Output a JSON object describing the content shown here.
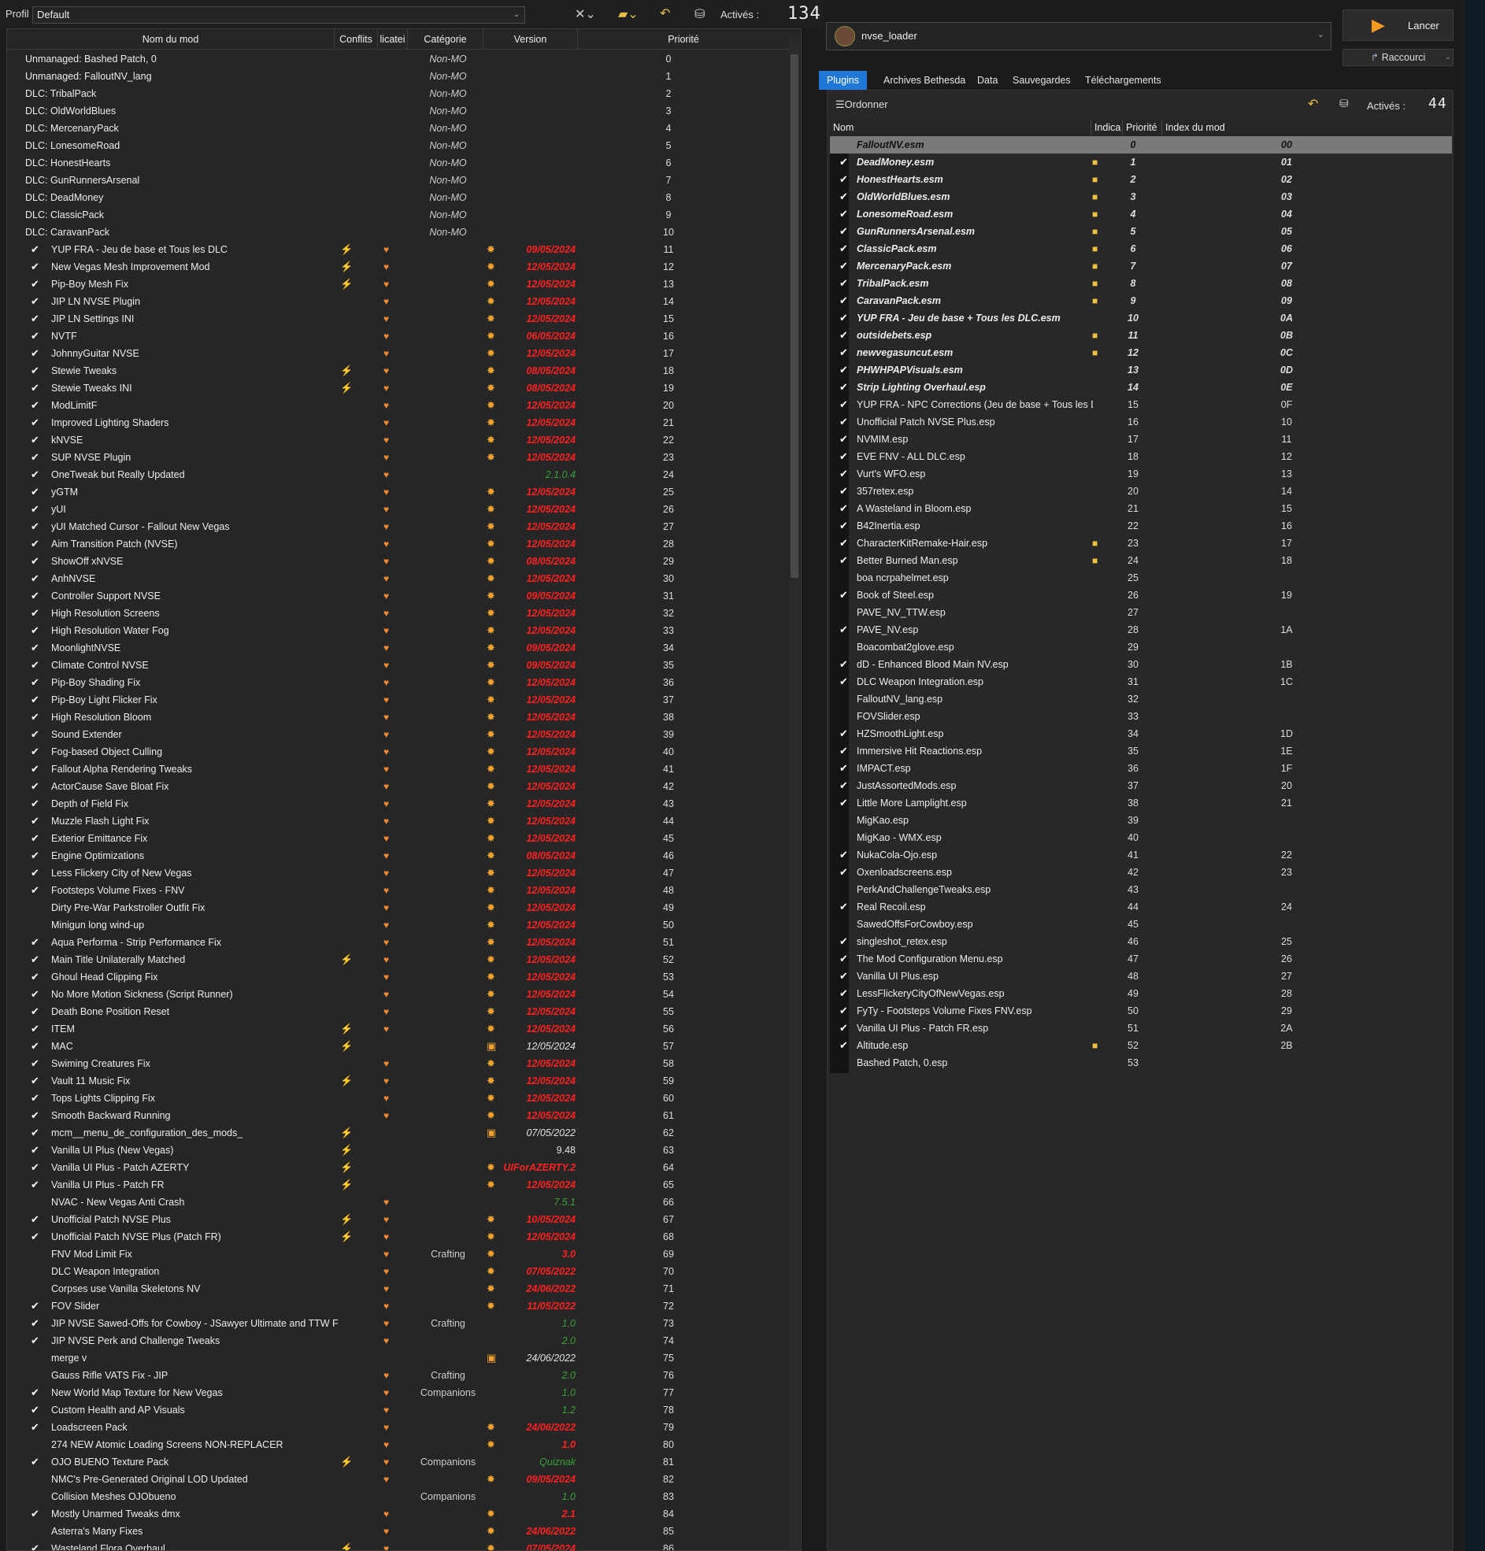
{
  "toolbar": {
    "profile_label": "Profil",
    "profile_value": "Default",
    "active_label": "Activés :",
    "active_count": "134"
  },
  "left_headers": [
    "Nom du mod",
    "Conflits",
    "licatei",
    "Catégorie",
    "Version",
    "Priorité"
  ],
  "mods": [
    [
      "",
      "Unmanaged: Bashed Patch, 0",
      "",
      "",
      "Non-MO",
      "",
      "",
      "0"
    ],
    [
      "",
      "Unmanaged: FalloutNV_lang",
      "",
      "",
      "Non-MO",
      "",
      "",
      "1"
    ],
    [
      "",
      "DLC: TribalPack",
      "",
      "",
      "Non-MO",
      "",
      "",
      "2"
    ],
    [
      "",
      "DLC: OldWorldBlues",
      "",
      "",
      "Non-MO",
      "",
      "",
      "3"
    ],
    [
      "",
      "DLC: MercenaryPack",
      "",
      "",
      "Non-MO",
      "",
      "",
      "4"
    ],
    [
      "",
      "DLC: LonesomeRoad",
      "",
      "",
      "Non-MO",
      "",
      "",
      "5"
    ],
    [
      "",
      "DLC: HonestHearts",
      "",
      "",
      "Non-MO",
      "",
      "",
      "6"
    ],
    [
      "",
      "DLC: GunRunnersArsenal",
      "",
      "",
      "Non-MO",
      "",
      "",
      "7"
    ],
    [
      "",
      "DLC: DeadMoney",
      "",
      "",
      "Non-MO",
      "",
      "",
      "8"
    ],
    [
      "",
      "DLC: ClassicPack",
      "",
      "",
      "Non-MO",
      "",
      "",
      "9"
    ],
    [
      "",
      "DLC: CaravanPack",
      "",
      "",
      "Non-MO",
      "",
      "",
      "10"
    ],
    [
      "✔",
      "YUP FRA - Jeu de base et Tous les DLC",
      "⚡",
      "♥",
      "",
      "✸",
      "09/05/2024",
      "11"
    ],
    [
      "✔",
      "New Vegas Mesh Improvement Mod",
      "⚡",
      "♥",
      "",
      "✸",
      "12/05/2024",
      "12"
    ],
    [
      "✔",
      "Pip-Boy Mesh Fix",
      "⚡",
      "♥",
      "",
      "✸",
      "12/05/2024",
      "13"
    ],
    [
      "✔",
      "JIP LN NVSE Plugin",
      "",
      "♥",
      "",
      "✸",
      "12/05/2024",
      "14"
    ],
    [
      "✔",
      "JIP LN Settings INI",
      "",
      "♥",
      "",
      "✸",
      "12/05/2024",
      "15"
    ],
    [
      "✔",
      "NVTF",
      "",
      "♥",
      "",
      "✸",
      "06/05/2024",
      "16"
    ],
    [
      "✔",
      "JohnnyGuitar NVSE",
      "",
      "♥",
      "",
      "✸",
      "12/05/2024",
      "17"
    ],
    [
      "✔",
      "Stewie Tweaks",
      "⚡",
      "♥",
      "",
      "✸",
      "08/05/2024",
      "18"
    ],
    [
      "✔",
      "Stewie Tweaks INI",
      "⚡",
      "♥",
      "",
      "✸",
      "08/05/2024",
      "19"
    ],
    [
      "✔",
      "ModLimitF",
      "",
      "♥",
      "",
      "✸",
      "12/05/2024",
      "20"
    ],
    [
      "✔",
      "Improved Lighting Shaders",
      "",
      "♥",
      "",
      "✸",
      "12/05/2024",
      "21"
    ],
    [
      "✔",
      "kNVSE",
      "",
      "♥",
      "",
      "✸",
      "12/05/2024",
      "22"
    ],
    [
      "✔",
      "SUP NVSE Plugin",
      "",
      "♥",
      "",
      "✸",
      "12/05/2024",
      "23"
    ],
    [
      "✔",
      "OneTweak but Really Updated",
      "",
      "♥",
      "",
      "",
      "2.1.0.4",
      "24"
    ],
    [
      "✔",
      "yGTM",
      "",
      "♥",
      "",
      "✸",
      "12/05/2024",
      "25"
    ],
    [
      "✔",
      "yUI",
      "",
      "♥",
      "",
      "✸",
      "12/05/2024",
      "26"
    ],
    [
      "✔",
      "yUI Matched Cursor - Fallout New Vegas",
      "",
      "♥",
      "",
      "✸",
      "12/05/2024",
      "27"
    ],
    [
      "✔",
      "Aim Transition Patch (NVSE)",
      "",
      "♥",
      "",
      "✸",
      "12/05/2024",
      "28"
    ],
    [
      "✔",
      "ShowOff xNVSE",
      "",
      "♥",
      "",
      "✸",
      "08/05/2024",
      "29"
    ],
    [
      "✔",
      "AnhNVSE",
      "",
      "♥",
      "",
      "✸",
      "12/05/2024",
      "30"
    ],
    [
      "✔",
      "Controller Support NVSE",
      "",
      "♥",
      "",
      "✸",
      "09/05/2024",
      "31"
    ],
    [
      "✔",
      "High Resolution Screens",
      "",
      "♥",
      "",
      "✸",
      "12/05/2024",
      "32"
    ],
    [
      "✔",
      "High Resolution Water Fog",
      "",
      "♥",
      "",
      "✸",
      "12/05/2024",
      "33"
    ],
    [
      "✔",
      "MoonlightNVSE",
      "",
      "♥",
      "",
      "✸",
      "09/05/2024",
      "34"
    ],
    [
      "✔",
      "Climate Control NVSE",
      "",
      "♥",
      "",
      "✸",
      "09/05/2024",
      "35"
    ],
    [
      "✔",
      "Pip-Boy Shading Fix",
      "",
      "♥",
      "",
      "✸",
      "12/05/2024",
      "36"
    ],
    [
      "✔",
      "Pip-Boy Light Flicker Fix",
      "",
      "♥",
      "",
      "✸",
      "12/05/2024",
      "37"
    ],
    [
      "✔",
      "High Resolution Bloom",
      "",
      "♥",
      "",
      "✸",
      "12/05/2024",
      "38"
    ],
    [
      "✔",
      "Sound Extender",
      "",
      "♥",
      "",
      "✸",
      "12/05/2024",
      "39"
    ],
    [
      "✔",
      "Fog-based Object Culling",
      "",
      "♥",
      "",
      "✸",
      "12/05/2024",
      "40"
    ],
    [
      "✔",
      "Fallout Alpha Rendering Tweaks",
      "",
      "♥",
      "",
      "✸",
      "12/05/2024",
      "41"
    ],
    [
      "✔",
      "ActorCause Save Bloat Fix",
      "",
      "♥",
      "",
      "✸",
      "12/05/2024",
      "42"
    ],
    [
      "✔",
      "Depth of Field Fix",
      "",
      "♥",
      "",
      "✸",
      "12/05/2024",
      "43"
    ],
    [
      "✔",
      "Muzzle Flash Light Fix",
      "",
      "♥",
      "",
      "✸",
      "12/05/2024",
      "44"
    ],
    [
      "✔",
      "Exterior Emittance Fix",
      "",
      "♥",
      "",
      "✸",
      "12/05/2024",
      "45"
    ],
    [
      "✔",
      "Engine Optimizations",
      "",
      "♥",
      "",
      "✸",
      "08/05/2024",
      "46"
    ],
    [
      "✔",
      "Less Flickery City of New Vegas",
      "",
      "♥",
      "",
      "✸",
      "12/05/2024",
      "47"
    ],
    [
      "✔",
      "Footsteps Volume Fixes - FNV",
      "",
      "♥",
      "",
      "✸",
      "12/05/2024",
      "48"
    ],
    [
      "",
      "Dirty Pre-War Parkstroller Outfit Fix",
      "",
      "♥",
      "",
      "✸",
      "12/05/2024",
      "49"
    ],
    [
      "",
      "Minigun long wind-up",
      "",
      "♥",
      "",
      "✸",
      "12/05/2024",
      "50"
    ],
    [
      "✔",
      "Aqua Performa - Strip Performance Fix",
      "",
      "♥",
      "",
      "✸",
      "12/05/2024",
      "51"
    ],
    [
      "✔",
      "Main Title Unilaterally Matched",
      "⚡",
      "♥",
      "",
      "✸",
      "12/05/2024",
      "52"
    ],
    [
      "✔",
      "Ghoul Head Clipping Fix",
      "",
      "♥",
      "",
      "✸",
      "12/05/2024",
      "53"
    ],
    [
      "✔",
      "No More Motion Sickness (Script Runner)",
      "",
      "♥",
      "",
      "✸",
      "12/05/2024",
      "54"
    ],
    [
      "✔",
      "Death Bone Position Reset",
      "",
      "♥",
      "",
      "✸",
      "12/05/2024",
      "55"
    ],
    [
      "✔",
      "ITEM",
      "⚡",
      "♥",
      "",
      "✸",
      "12/05/2024",
      "56"
    ],
    [
      "✔",
      "MAC",
      "⚡",
      "",
      "",
      "▣",
      "12/05/2024",
      "57"
    ],
    [
      "✔",
      "Swiming Creatures Fix",
      "",
      "♥",
      "",
      "✸",
      "12/05/2024",
      "58"
    ],
    [
      "✔",
      "Vault 11 Music Fix",
      "⚡",
      "♥",
      "",
      "✸",
      "12/05/2024",
      "59"
    ],
    [
      "✔",
      "Tops Lights Clipping Fix",
      "",
      "♥",
      "",
      "✸",
      "12/05/2024",
      "60"
    ],
    [
      "✔",
      "Smooth Backward Running",
      "",
      "♥",
      "",
      "✸",
      "12/05/2024",
      "61"
    ],
    [
      "✔",
      "mcm__menu_de_configuration_des_mods_",
      "⚡",
      "",
      "",
      "▣",
      "07/05/2022",
      "62"
    ],
    [
      "✔",
      "Vanilla UI Plus (New Vegas)",
      "⚡",
      "",
      "",
      "",
      "9.48",
      "63"
    ],
    [
      "✔",
      "Vanilla UI Plus - Patch AZERTY",
      "⚡",
      "",
      "",
      "✸",
      "UIForAZERTY.2",
      "64"
    ],
    [
      "✔",
      "Vanilla UI Plus - Patch FR",
      "⚡",
      "",
      "",
      "✸",
      "12/05/2024",
      "65"
    ],
    [
      "",
      "NVAC - New Vegas Anti Crash",
      "",
      "♥",
      "",
      "",
      "7.5.1",
      "66"
    ],
    [
      "✔",
      "Unofficial Patch NVSE Plus",
      "⚡",
      "♥",
      "",
      "✸",
      "10/05/2024",
      "67"
    ],
    [
      "✔",
      "Unofficial Patch NVSE Plus (Patch FR)",
      "⚡",
      "♥",
      "",
      "✸",
      "12/05/2024",
      "68"
    ],
    [
      "",
      "FNV Mod Limit Fix",
      "",
      "♥",
      "Crafting",
      "✸",
      "3.0",
      "69"
    ],
    [
      "",
      "DLC Weapon Integration",
      "",
      "♥",
      "",
      "✸",
      "07/05/2022",
      "70"
    ],
    [
      "",
      "Corpses use Vanilla Skeletons NV",
      "",
      "♥",
      "",
      "✸",
      "24/06/2022",
      "71"
    ],
    [
      "✔",
      "FOV Slider",
      "",
      "♥",
      "",
      "✸",
      "11/05/2022",
      "72"
    ],
    [
      "✔",
      "JIP NVSE Sawed-Offs for Cowboy - JSawyer Ultimate and TTW Fri...",
      "",
      "♥",
      "Crafting",
      "",
      "1.0",
      "73"
    ],
    [
      "✔",
      "JIP NVSE Perk and Challenge Tweaks",
      "",
      "♥",
      "",
      "",
      "2.0",
      "74"
    ],
    [
      "",
      "merge v",
      "",
      "",
      "",
      "▣",
      "24/06/2022",
      "75"
    ],
    [
      "",
      "Gauss Rifle VATS Fix - JIP",
      "",
      "♥",
      "Crafting",
      "",
      "2.0",
      "76"
    ],
    [
      "✔",
      "New World Map Texture for New Vegas",
      "",
      "♥",
      "Companions",
      "",
      "1.0",
      "77"
    ],
    [
      "✔",
      "Custom Health and AP Visuals",
      "",
      "♥",
      "",
      "",
      "1.2",
      "78"
    ],
    [
      "✔",
      "Loadscreen Pack",
      "",
      "♥",
      "",
      "✸",
      "24/06/2022",
      "79"
    ],
    [
      "",
      "274 NEW Atomic Loading Screens NON-REPLACER",
      "",
      "♥",
      "",
      "✸",
      "1.0",
      "80"
    ],
    [
      "✔",
      "OJO BUENO Texture Pack",
      "⚡",
      "♥",
      "Companions",
      "",
      "Quiznak",
      "81"
    ],
    [
      "",
      "NMC's Pre-Generated Original LOD Updated",
      "",
      "♥",
      "",
      "✸",
      "09/05/2024",
      "82"
    ],
    [
      "",
      "Collision Meshes OJObueno",
      "",
      "",
      "Companions",
      "",
      "1.0",
      "83"
    ],
    [
      "✔",
      "Mostly Unarmed Tweaks dmx",
      "",
      "♥",
      "",
      "✸",
      "2.1",
      "84"
    ],
    [
      "",
      "Asterra's Many Fixes",
      "",
      "♥",
      "",
      "✸",
      "24/06/2022",
      "85"
    ],
    [
      "✔",
      "Wasteland Flora Overhaul",
      "⚡",
      "♥",
      "",
      "✸",
      "07/05/2024",
      "86"
    ]
  ],
  "right": {
    "executable": "nvse_loader",
    "launch_label": "Lancer",
    "shortcut_label": "Raccourci",
    "tabs": [
      "Plugins",
      "Archives Bethesda",
      "Data",
      "Sauvegardes",
      "Téléchargements"
    ],
    "sort_label": "Ordonner",
    "active_label": "Activés :",
    "active_count": "44",
    "headers": [
      "Nom",
      "Indica",
      "Priorité",
      "Index du mod"
    ],
    "plugins": [
      [
        "",
        "FalloutNV.esm",
        "",
        "0",
        "00"
      ],
      [
        "✔",
        "DeadMoney.esm",
        "■",
        "1",
        "01"
      ],
      [
        "✔",
        "HonestHearts.esm",
        "■",
        "2",
        "02"
      ],
      [
        "✔",
        "OldWorldBlues.esm",
        "■",
        "3",
        "03"
      ],
      [
        "✔",
        "LonesomeRoad.esm",
        "■",
        "4",
        "04"
      ],
      [
        "✔",
        "GunRunnersArsenal.esm",
        "■",
        "5",
        "05"
      ],
      [
        "✔",
        "ClassicPack.esm",
        "■",
        "6",
        "06"
      ],
      [
        "✔",
        "MercenaryPack.esm",
        "■",
        "7",
        "07"
      ],
      [
        "✔",
        "TribalPack.esm",
        "■",
        "8",
        "08"
      ],
      [
        "✔",
        "CaravanPack.esm",
        "■",
        "9",
        "09"
      ],
      [
        "✔",
        "YUP FRA - Jeu de base + Tous les DLC.esm",
        "",
        "10",
        "0A"
      ],
      [
        "✔",
        "outsidebets.esp",
        "■",
        "11",
        "0B"
      ],
      [
        "✔",
        "newvegasuncut.esm",
        "■",
        "12",
        "0C"
      ],
      [
        "✔",
        "PHWHPAPVisuals.esm",
        "",
        "13",
        "0D"
      ],
      [
        "✔",
        "Strip Lighting Overhaul.esp",
        "",
        "14",
        "0E"
      ],
      [
        "✔",
        "YUP FRA - NPC Corrections (Jeu de base + Tous les DL...",
        "",
        "15",
        "0F"
      ],
      [
        "✔",
        "Unofficial Patch NVSE Plus.esp",
        "",
        "16",
        "10"
      ],
      [
        "✔",
        "NVMIM.esp",
        "",
        "17",
        "11"
      ],
      [
        "✔",
        "EVE FNV - ALL DLC.esp",
        "",
        "18",
        "12"
      ],
      [
        "✔",
        "Vurt's WFO.esp",
        "",
        "19",
        "13"
      ],
      [
        "✔",
        "357retex.esp",
        "",
        "20",
        "14"
      ],
      [
        "✔",
        "A Wasteland in Bloom.esp",
        "",
        "21",
        "15"
      ],
      [
        "✔",
        "B42Inertia.esp",
        "",
        "22",
        "16"
      ],
      [
        "✔",
        "CharacterKitRemake-Hair.esp",
        "■",
        "23",
        "17"
      ],
      [
        "✔",
        "Better Burned Man.esp",
        "■",
        "24",
        "18"
      ],
      [
        "",
        "boa ncrpahelmet.esp",
        "",
        "25",
        ""
      ],
      [
        "✔",
        "Book of Steel.esp",
        "",
        "26",
        "19"
      ],
      [
        "",
        "PAVE_NV_TTW.esp",
        "",
        "27",
        ""
      ],
      [
        "✔",
        "PAVE_NV.esp",
        "",
        "28",
        "1A"
      ],
      [
        "",
        "Boacombat2glove.esp",
        "",
        "29",
        ""
      ],
      [
        "✔",
        "dD - Enhanced Blood Main NV.esp",
        "",
        "30",
        "1B"
      ],
      [
        "✔",
        "DLC Weapon Integration.esp",
        "",
        "31",
        "1C"
      ],
      [
        "",
        "FalloutNV_lang.esp",
        "",
        "32",
        ""
      ],
      [
        "",
        "FOVSlider.esp",
        "",
        "33",
        ""
      ],
      [
        "✔",
        "HZSmoothLight.esp",
        "",
        "34",
        "1D"
      ],
      [
        "✔",
        "Immersive Hit Reactions.esp",
        "",
        "35",
        "1E"
      ],
      [
        "✔",
        "IMPACT.esp",
        "",
        "36",
        "1F"
      ],
      [
        "✔",
        "JustAssortedMods.esp",
        "",
        "37",
        "20"
      ],
      [
        "✔",
        "Little More Lamplight.esp",
        "",
        "38",
        "21"
      ],
      [
        "",
        "MigKao.esp",
        "",
        "39",
        ""
      ],
      [
        "",
        "MigKao - WMX.esp",
        "",
        "40",
        ""
      ],
      [
        "✔",
        "NukaCola-Ojo.esp",
        "",
        "41",
        "22"
      ],
      [
        "✔",
        "Oxenloadscreens.esp",
        "",
        "42",
        "23"
      ],
      [
        "",
        "PerkAndChallengeTweaks.esp",
        "",
        "43",
        ""
      ],
      [
        "✔",
        "Real Recoil.esp",
        "",
        "44",
        "24"
      ],
      [
        "",
        "SawedOffsForCowboy.esp",
        "",
        "45",
        ""
      ],
      [
        "✔",
        "singleshot_retex.esp",
        "",
        "46",
        "25"
      ],
      [
        "✔",
        "The Mod Configuration Menu.esp",
        "",
        "47",
        "26"
      ],
      [
        "✔",
        "Vanilla UI Plus.esp",
        "",
        "48",
        "27"
      ],
      [
        "✔",
        "LessFlickeryCityOfNewVegas.esp",
        "",
        "49",
        "28"
      ],
      [
        "✔",
        "FyTy - Footsteps Volume Fixes FNV.esp",
        "",
        "50",
        "29"
      ],
      [
        "✔",
        "Vanilla UI Plus - Patch FR.esp",
        "",
        "51",
        "2A"
      ],
      [
        "✔",
        "Altitude.esp",
        "■",
        "52",
        "2B"
      ],
      [
        "",
        "Bashed Patch, 0.esp",
        "",
        "53",
        ""
      ]
    ]
  },
  "colors": {
    "accent": "#1f77d8",
    "version_red": "#ff2020",
    "version_green": "#3aa03a"
  }
}
